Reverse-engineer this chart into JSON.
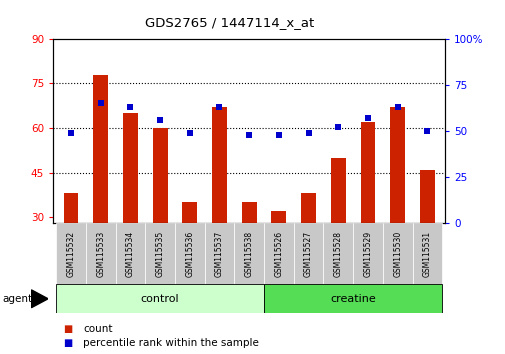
{
  "title": "GDS2765 / 1447114_x_at",
  "samples": [
    "GSM115532",
    "GSM115533",
    "GSM115534",
    "GSM115535",
    "GSM115536",
    "GSM115537",
    "GSM115538",
    "GSM115526",
    "GSM115527",
    "GSM115528",
    "GSM115529",
    "GSM115530",
    "GSM115531"
  ],
  "count_values": [
    38,
    78,
    65,
    60,
    35,
    67,
    35,
    32,
    38,
    50,
    62,
    67,
    46
  ],
  "percentile_values": [
    49,
    65,
    63,
    56,
    49,
    63,
    48,
    48,
    49,
    52,
    57,
    63,
    50
  ],
  "bar_color": "#cc2200",
  "dot_color": "#0000cc",
  "ylim_left": [
    28,
    90
  ],
  "ylim_right": [
    0,
    100
  ],
  "yticks_left": [
    30,
    45,
    60,
    75,
    90
  ],
  "yticks_right": [
    0,
    25,
    50,
    75,
    100
  ],
  "groups": [
    {
      "label": "control",
      "start": 0,
      "end": 7,
      "color": "#ccffcc"
    },
    {
      "label": "creatine",
      "start": 7,
      "end": 13,
      "color": "#55dd55"
    }
  ],
  "agent_label": "agent",
  "legend_count": "count",
  "legend_percentile": "percentile rank within the sample",
  "bar_width": 0.5,
  "dot_size": 18
}
